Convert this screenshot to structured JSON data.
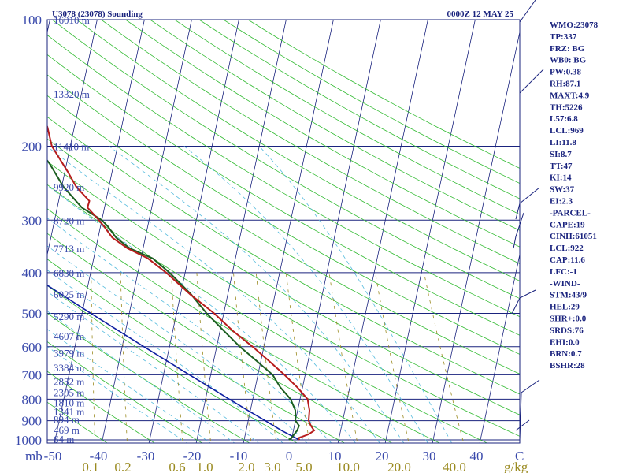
{
  "header": {
    "station_title": "U3078 (23078) Sounding",
    "valid_time": "0000Z 12 MAY 25"
  },
  "chart_data": {
    "type": "skew-t",
    "pressure_levels": [
      1000,
      900,
      800,
      700,
      600,
      500,
      400,
      300,
      200,
      100
    ],
    "pressure_labels": [
      "1000",
      "900",
      "800",
      "700",
      "600",
      "500",
      "400",
      "300",
      "200",
      "100"
    ],
    "pressure_axis_unit": "mb",
    "temperature_ticks": [
      -50,
      -40,
      -30,
      -20,
      -10,
      0,
      10,
      20,
      30,
      40
    ],
    "temperature_tick_labels": [
      "-50",
      "-40",
      "-30",
      "-20",
      "-10",
      "0",
      "10",
      "20",
      "30",
      "40"
    ],
    "temperature_unit": "C",
    "mixing_ratio_ticks": [
      0.1,
      0.2,
      0.6,
      1.0,
      2.0,
      3.0,
      5.0,
      10.0,
      20.0,
      40.0
    ],
    "mixing_ratio_labels": [
      "0.1",
      "0.2",
      "0.6",
      "1.0",
      "2.0",
      "3.0",
      "5.0",
      "10.0",
      "20.0",
      "40.0"
    ],
    "mixing_ratio_unit": "g/kg",
    "heights": [
      {
        "p": 994,
        "label": "64 m"
      },
      {
        "p": 945,
        "label": "469 m"
      },
      {
        "p": 891,
        "label": "894 m"
      },
      {
        "p": 855,
        "label": "1341 m"
      },
      {
        "p": 815,
        "label": "1810 m"
      },
      {
        "p": 770,
        "label": "2305 m"
      },
      {
        "p": 725,
        "label": "2832 m"
      },
      {
        "p": 672,
        "label": "3384 m"
      },
      {
        "p": 620,
        "label": "3979 m"
      },
      {
        "p": 565,
        "label": "4607 m"
      },
      {
        "p": 508,
        "label": "5290 m"
      },
      {
        "p": 450,
        "label": "6025 m"
      },
      {
        "p": 400,
        "label": "6830 m"
      },
      {
        "p": 350,
        "label": "7713 m"
      },
      {
        "p": 300,
        "label": "8720 m"
      },
      {
        "p": 250,
        "label": "9920 m"
      },
      {
        "p": 200,
        "label": "11410 m"
      },
      {
        "p": 150,
        "label": "13320 m"
      },
      {
        "p": 100,
        "label": "16010 m"
      }
    ],
    "temperature_profile": [
      {
        "p": 1000,
        "t": 1.7
      },
      {
        "p": 990,
        "t": 1.4
      },
      {
        "p": 970,
        "t": 3.4
      },
      {
        "p": 950,
        "t": 4.4
      },
      {
        "p": 925,
        "t": 3.5
      },
      {
        "p": 900,
        "t": 2.8
      },
      {
        "p": 850,
        "t": 2.5
      },
      {
        "p": 800,
        "t": 1.6
      },
      {
        "p": 750,
        "t": -1.1
      },
      {
        "p": 700,
        "t": -4.4
      },
      {
        "p": 650,
        "t": -8.2
      },
      {
        "p": 600,
        "t": -12.4
      },
      {
        "p": 550,
        "t": -17.3
      },
      {
        "p": 500,
        "t": -22.0
      },
      {
        "p": 450,
        "t": -28.0
      },
      {
        "p": 400,
        "t": -34.0
      },
      {
        "p": 370,
        "t": -38.5
      },
      {
        "p": 350,
        "t": -43.3
      },
      {
        "p": 330,
        "t": -47.0
      },
      {
        "p": 310,
        "t": -49.3
      },
      {
        "p": 300,
        "t": -50.6
      },
      {
        "p": 280,
        "t": -53.6
      },
      {
        "p": 270,
        "t": -53.5
      },
      {
        "p": 250,
        "t": -56.9
      },
      {
        "p": 230,
        "t": -59.4
      },
      {
        "p": 200,
        "t": -63.9
      },
      {
        "p": 180,
        "t": -65.7
      },
      {
        "p": 160,
        "t": -68.8
      },
      {
        "p": 150,
        "t": -70.9
      },
      {
        "p": 140,
        "t": -72.6
      },
      {
        "p": 130,
        "t": -72.6
      },
      {
        "p": 120,
        "t": -73.1
      },
      {
        "p": 110,
        "t": -75.9
      },
      {
        "p": 100,
        "t": -78.3
      }
    ],
    "dewpoint_profile": [
      {
        "p": 1000,
        "t": -0.5
      },
      {
        "p": 990,
        "t": -0.1
      },
      {
        "p": 950,
        "t": 0.8
      },
      {
        "p": 925,
        "t": 1.0
      },
      {
        "p": 900,
        "t": 0.0
      },
      {
        "p": 850,
        "t": -0.5
      },
      {
        "p": 800,
        "t": -2.0
      },
      {
        "p": 750,
        "t": -4.7
      },
      {
        "p": 700,
        "t": -6.9
      },
      {
        "p": 650,
        "t": -10.8
      },
      {
        "p": 600,
        "t": -15.1
      },
      {
        "p": 550,
        "t": -19.2
      },
      {
        "p": 500,
        "t": -23.6
      },
      {
        "p": 450,
        "t": -27.8
      },
      {
        "p": 400,
        "t": -33.3
      },
      {
        "p": 370,
        "t": -37.5
      },
      {
        "p": 350,
        "t": -42.8
      },
      {
        "p": 330,
        "t": -46.2
      },
      {
        "p": 310,
        "t": -48.5
      },
      {
        "p": 300,
        "t": -50.0
      },
      {
        "p": 280,
        "t": -54.8
      },
      {
        "p": 250,
        "t": -59.6
      },
      {
        "p": 220,
        "t": -63.6
      },
      {
        "p": 200,
        "t": -67.2
      },
      {
        "p": 180,
        "t": -69.4
      },
      {
        "p": 160,
        "t": -73.0
      },
      {
        "p": 150,
        "t": -74.6
      },
      {
        "p": 130,
        "t": -78.6
      },
      {
        "p": 110,
        "t": -82.5
      },
      {
        "p": 100,
        "t": -84.3
      }
    ],
    "parcel_profile": [
      {
        "p": 1000,
        "t": 1.7
      },
      {
        "p": 950,
        "t": -2.5
      },
      {
        "p": 900,
        "t": -6.4
      },
      {
        "p": 850,
        "t": -10.6
      },
      {
        "p": 800,
        "t": -15.0
      },
      {
        "p": 700,
        "t": -24.5
      },
      {
        "p": 600,
        "t": -35.4
      },
      {
        "p": 500,
        "t": -48.1
      },
      {
        "p": 400,
        "t": -63.3
      },
      {
        "p": 300,
        "t": -82.2
      },
      {
        "p": 250,
        "t": -93.4
      },
      {
        "p": 200,
        "t": -106.5
      },
      {
        "p": 150,
        "t": -122.6
      },
      {
        "p": 120,
        "t": -134.3
      }
    ],
    "colors": {
      "isobar": "#1a237e",
      "isotherm": "#1a237e",
      "dry_adiabat": "#33bb33",
      "moist_adiabat": "#55bbdd",
      "mixing_ratio": "#9a8a20",
      "temperature": "#b71c1c",
      "dewpoint": "#1b5e20",
      "parcel": "#0d1fa0",
      "labels": "#3949ab",
      "indices": "#1a237e"
    }
  },
  "indices": [
    "WMO:23078",
    "TP:337",
    "FRZ: BG",
    "WB0: BG",
    "PW:0.38",
    "RH:87.1",
    "MAXT:4.9",
    "TH:5226",
    "L57:6.8",
    "LCL:969",
    "LI:11.8",
    "SI:8.7",
    "TT:47",
    "KI:14",
    "SW:37",
    "EI:2.3",
    "-PARCEL-",
    "CAPE:19",
    "CINH:61051",
    "LCL:922",
    "CAP:11.6",
    "LFC:-1",
    "-WIND-",
    "STM:43/9",
    "HEL:29",
    "SHR+:0.0",
    "SRDS:76",
    "EHI:0.0",
    "BRN:0.7",
    "BSHR:28"
  ]
}
